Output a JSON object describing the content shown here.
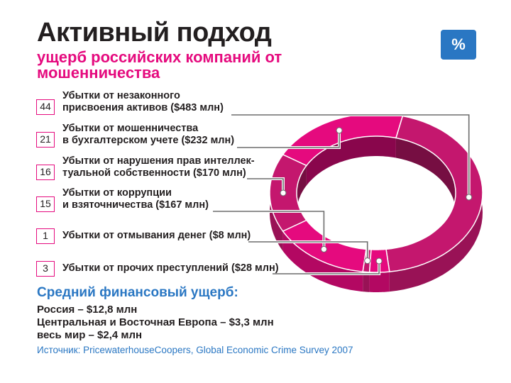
{
  "header": {
    "title": "Активный подход",
    "subtitle": "ущерб российских компаний от мошенничества",
    "badge": "%"
  },
  "chart_data": {
    "type": "pie",
    "style": "3d-ring",
    "categories": [
      "Убытки от незаконного присвоения активов ($483 млн)",
      "Убытки от мошенничества в бухгалтерском учете ($232 млн)",
      "Убытки от нарушения прав интеллек-туальной собственности ($170 млн)",
      "Убытки от коррупции и взяточничества ($167 млн)",
      "Убытки от отмывания денег ($8 млн)",
      "Убытки от прочих преступлений ($28 млн)"
    ],
    "values": [
      44,
      21,
      16,
      15,
      1,
      3
    ],
    "value_labels": [
      "44",
      "21",
      "16",
      "15",
      "1",
      "3"
    ],
    "colors": [
      "#c4176e",
      "#e50a7e",
      "#c4176e",
      "#e50a7e",
      "#c4176e",
      "#e50a7e"
    ]
  },
  "rows": [
    {
      "pct": "44",
      "line1": "Убытки от незаконного",
      "line2": "присвоения активов ($483 млн)"
    },
    {
      "pct": "21",
      "line1": "Убытки от мошенничества",
      "line2": "в бухгалтерском учете ($232 млн)"
    },
    {
      "pct": "16",
      "line1": "Убытки от нарушения прав интеллек-",
      "line2": "туальной собственности ($170 млн)"
    },
    {
      "pct": "15",
      "line1": "Убытки от коррупции",
      "line2": "и взяточничества ($167 млн)"
    },
    {
      "pct": "1",
      "line1": "Убытки от отмывания денег ($8 млн)",
      "line2": ""
    },
    {
      "pct": "3",
      "line1": "Убытки от прочих преступлений ($28 млн)",
      "line2": ""
    }
  ],
  "average": {
    "title": "Средний финансовый ущерб:",
    "lines": [
      "Россия – $12,8 млн",
      "Центральная и Восточная Европа – $3,3 млн",
      "весь мир – $2,4 млн"
    ]
  },
  "source": "Источник: PricewaterhouseCoopers, Global Economic Crime Survey 2007"
}
